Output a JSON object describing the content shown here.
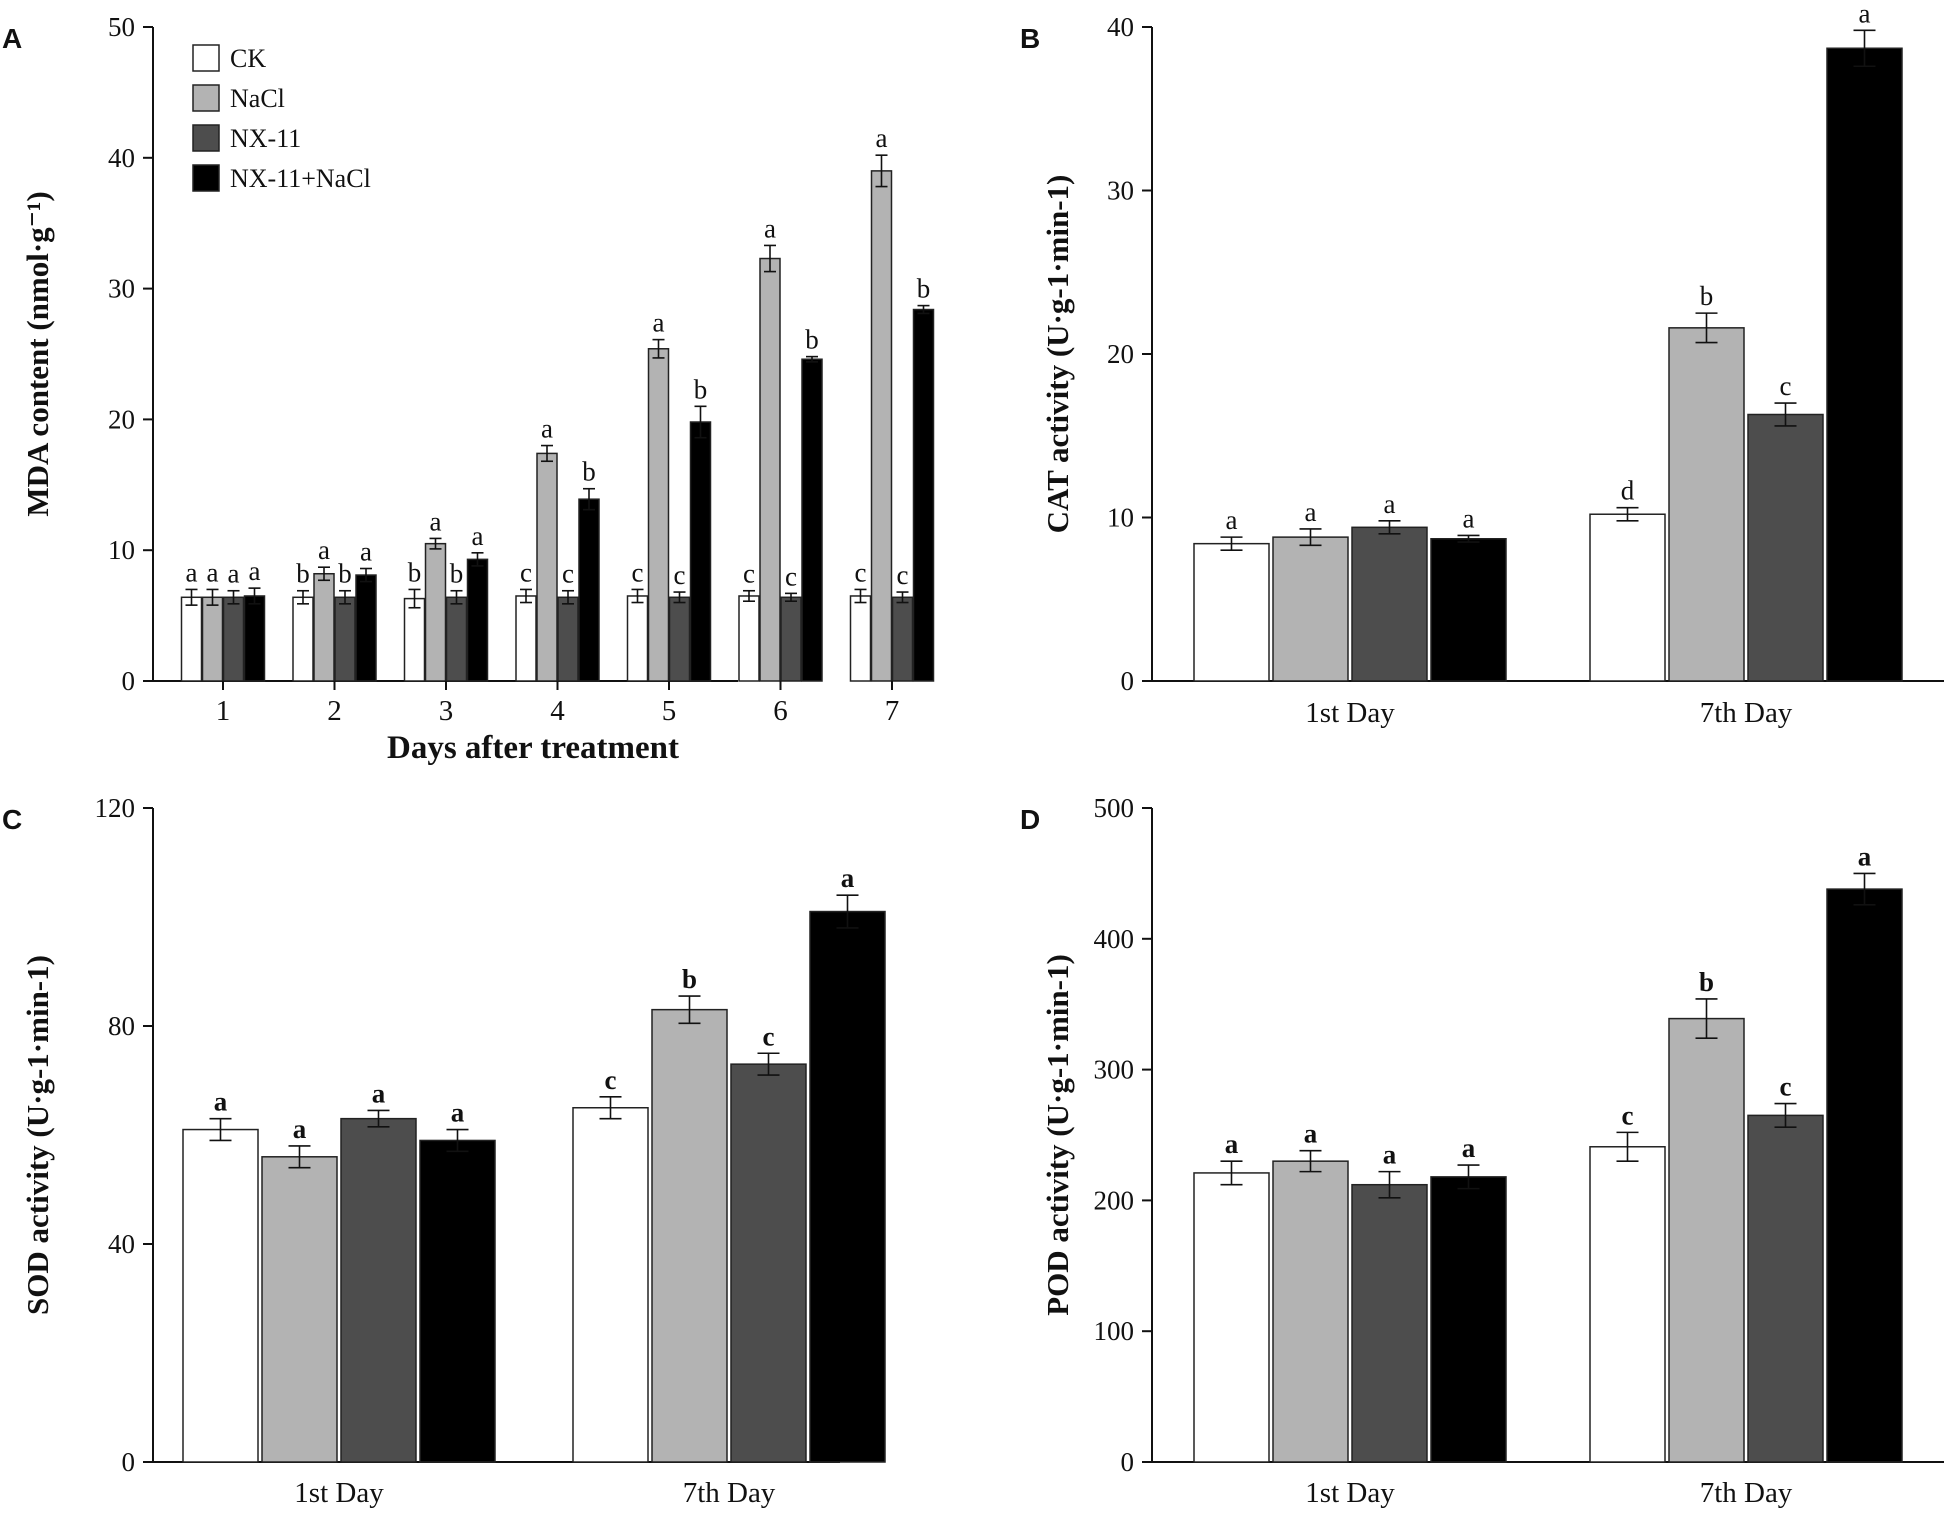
{
  "colors": {
    "CK": "#ffffff",
    "NaCl": "#b3b3b3",
    "NX-11": "#4d4d4d",
    "NX-11+NaCl": "#000000"
  },
  "chart_data": [
    {
      "panel": "A",
      "type": "bar",
      "xlabel": "Days after treatment",
      "ylabel": "MDA content (nmol·g⁻¹)",
      "ylim": [
        0,
        50
      ],
      "yticks": [
        "0",
        "10",
        "20",
        "30",
        "40",
        "50"
      ],
      "categories": [
        "1",
        "2",
        "3",
        "4",
        "5",
        "6",
        "7"
      ],
      "legend": [
        "CK",
        "NaCl",
        "NX-11",
        "NX-11+NaCl"
      ],
      "legend_position": "top-left",
      "series": [
        {
          "name": "CK",
          "values": [
            6.4,
            6.4,
            6.3,
            6.5,
            6.5,
            6.5,
            6.5
          ],
          "errors": [
            0.6,
            0.5,
            0.7,
            0.5,
            0.5,
            0.4,
            0.5
          ],
          "labels": [
            "a",
            "b",
            "b",
            "c",
            "c",
            "c",
            "c"
          ]
        },
        {
          "name": "NaCl",
          "values": [
            6.4,
            8.2,
            10.5,
            17.4,
            25.4,
            32.3,
            39.0
          ],
          "errors": [
            0.6,
            0.5,
            0.4,
            0.6,
            0.7,
            1.0,
            1.2
          ],
          "labels": [
            "a",
            "a",
            "a",
            "a",
            "a",
            "a",
            "a"
          ]
        },
        {
          "name": "NX-11",
          "values": [
            6.4,
            6.4,
            6.4,
            6.4,
            6.4,
            6.4,
            6.4
          ],
          "errors": [
            0.5,
            0.5,
            0.5,
            0.5,
            0.4,
            0.3,
            0.4
          ],
          "labels": [
            "a",
            "b",
            "b",
            "c",
            "c",
            "c",
            "c"
          ]
        },
        {
          "name": "NX-11+NaCl",
          "values": [
            6.5,
            8.1,
            9.3,
            13.9,
            19.8,
            24.6,
            28.4
          ],
          "errors": [
            0.6,
            0.5,
            0.5,
            0.8,
            1.2,
            0.2,
            0.3
          ],
          "labels": [
            "a",
            "a",
            "a",
            "b",
            "b",
            "b",
            "b"
          ]
        }
      ]
    },
    {
      "panel": "B",
      "type": "bar",
      "xlabel": "",
      "ylabel": "CAT activity (U·g-1·min-1)",
      "ylim": [
        0,
        40
      ],
      "yticks": [
        "0",
        "10",
        "20",
        "30",
        "40"
      ],
      "categories": [
        "1st Day",
        "7th Day"
      ],
      "series": [
        {
          "name": "CK",
          "values": [
            8.4,
            10.2
          ],
          "errors": [
            0.4,
            0.4
          ],
          "labels": [
            "a",
            "d"
          ]
        },
        {
          "name": "NaCl",
          "values": [
            8.8,
            21.6
          ],
          "errors": [
            0.5,
            0.9
          ],
          "labels": [
            "a",
            "b"
          ]
        },
        {
          "name": "NX-11",
          "values": [
            9.4,
            16.3
          ],
          "errors": [
            0.4,
            0.7
          ],
          "labels": [
            "a",
            "c"
          ]
        },
        {
          "name": "NX-11+NaCl",
          "values": [
            8.7,
            38.7
          ],
          "errors": [
            0.2,
            1.1
          ],
          "labels": [
            "a",
            "a"
          ]
        }
      ]
    },
    {
      "panel": "C",
      "type": "bar",
      "xlabel": "",
      "ylabel": "SOD activity (U·g-1·min-1)",
      "ylim": [
        0,
        120
      ],
      "yticks": [
        "0",
        "40",
        "80",
        "120"
      ],
      "categories": [
        "1st Day",
        "7th Day"
      ],
      "series": [
        {
          "name": "CK",
          "values": [
            61,
            65
          ],
          "errors": [
            2,
            2
          ],
          "labels": [
            "a",
            "c"
          ]
        },
        {
          "name": "NaCl",
          "values": [
            56,
            83
          ],
          "errors": [
            2,
            2.5
          ],
          "labels": [
            "a",
            "b"
          ]
        },
        {
          "name": "NX-11",
          "values": [
            63,
            73
          ],
          "errors": [
            1.5,
            2
          ],
          "labels": [
            "a",
            "c"
          ]
        },
        {
          "name": "NX-11+NaCl",
          "values": [
            59,
            101
          ],
          "errors": [
            2,
            3
          ],
          "labels": [
            "a",
            "a"
          ]
        }
      ]
    },
    {
      "panel": "D",
      "type": "bar",
      "xlabel": "",
      "ylabel": "POD activity (U·g-1·min-1)",
      "ylim": [
        0,
        500
      ],
      "yticks": [
        "0",
        "100",
        "200",
        "300",
        "400",
        "500"
      ],
      "categories": [
        "1st Day",
        "7th Day"
      ],
      "series": [
        {
          "name": "CK",
          "values": [
            221,
            241
          ],
          "errors": [
            9,
            11
          ],
          "labels": [
            "a",
            "c"
          ]
        },
        {
          "name": "NaCl",
          "values": [
            230,
            339
          ],
          "errors": [
            8,
            15
          ],
          "labels": [
            "a",
            "b"
          ]
        },
        {
          "name": "NX-11",
          "values": [
            212,
            265
          ],
          "errors": [
            10,
            9
          ],
          "labels": [
            "a",
            "c"
          ]
        },
        {
          "name": "NX-11+NaCl",
          "values": [
            218,
            438
          ],
          "errors": [
            9,
            12
          ],
          "labels": [
            "a",
            "a"
          ]
        }
      ]
    }
  ]
}
